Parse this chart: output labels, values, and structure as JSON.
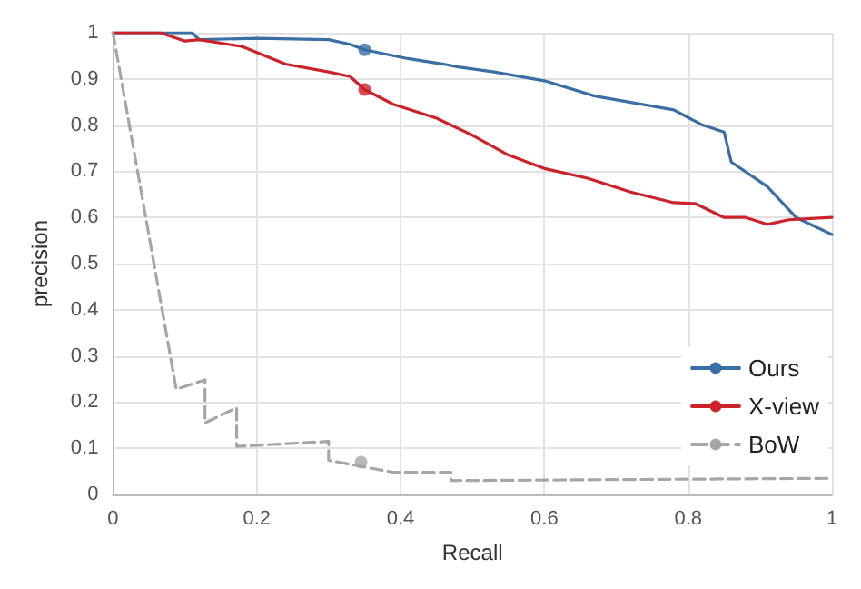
{
  "chart_data": {
    "type": "line",
    "xlabel": "Recall",
    "ylabel": "precision",
    "xlim": [
      0,
      1
    ],
    "ylim": [
      0,
      1
    ],
    "xticks": [
      0,
      0.2,
      0.4,
      0.6,
      0.8,
      1
    ],
    "yticks": [
      0,
      0.1,
      0.2,
      0.3,
      0.4,
      0.5,
      0.6,
      0.7,
      0.8,
      0.9,
      1
    ],
    "grid": true,
    "legend": "bottom right",
    "marker": "none",
    "series": [
      {
        "name": "Ours",
        "color": "#3a6ea5",
        "line_style": "solid",
        "x": [
          0,
          0.11,
          0.12,
          0.2,
          0.3,
          0.33,
          0.35,
          0.41,
          0.46,
          0.48,
          0.53,
          0.6,
          0.67,
          0.78,
          0.82,
          0.85,
          0.86,
          0.91,
          0.95,
          1
        ],
        "values": [
          1,
          1,
          0.985,
          0.988,
          0.985,
          0.975,
          0.963,
          0.944,
          0.932,
          0.926,
          0.915,
          0.896,
          0.863,
          0.833,
          0.8,
          0.785,
          0.72,
          0.667,
          0.6,
          0.563
        ]
      },
      {
        "name": "X-view",
        "color": "#cc2229",
        "line_style": "solid",
        "x": [
          0,
          0.066,
          0.1,
          0.12,
          0.18,
          0.24,
          0.3,
          0.33,
          0.35,
          0.39,
          0.45,
          0.5,
          0.55,
          0.6,
          0.66,
          0.72,
          0.78,
          0.81,
          0.85,
          0.88,
          0.91,
          0.94,
          1
        ],
        "values": [
          1,
          1,
          0.982,
          0.985,
          0.97,
          0.932,
          0.915,
          0.905,
          0.877,
          0.845,
          0.815,
          0.778,
          0.735,
          0.706,
          0.685,
          0.655,
          0.632,
          0.63,
          0.6,
          0.6,
          0.585,
          0.595,
          0.6
        ]
      },
      {
        "name": "BoW",
        "color": "#a6a6a6",
        "line_style": "dashed",
        "x": [
          0,
          0.088,
          0.128,
          0.128,
          0.172,
          0.172,
          0.3,
          0.3,
          0.39,
          0.47,
          0.47,
          1
        ],
        "values": [
          1,
          0.228,
          0.248,
          0.155,
          0.188,
          0.104,
          0.115,
          0.074,
          0.048,
          0.048,
          0.03,
          0.035
        ]
      },
      {
        "type": "scatter",
        "color": "#3a6ea5",
        "marker": "circle",
        "x": [
          0.35
        ],
        "values": [
          0.963
        ]
      },
      {
        "type": "scatter",
        "color": "#cc2229",
        "marker": "circle",
        "x": [
          0.35
        ],
        "values": [
          0.877
        ]
      },
      {
        "type": "scatter",
        "color": "#a6a6a6",
        "marker": "circle",
        "x": [
          0.345
        ],
        "values": [
          0.07
        ]
      }
    ]
  }
}
